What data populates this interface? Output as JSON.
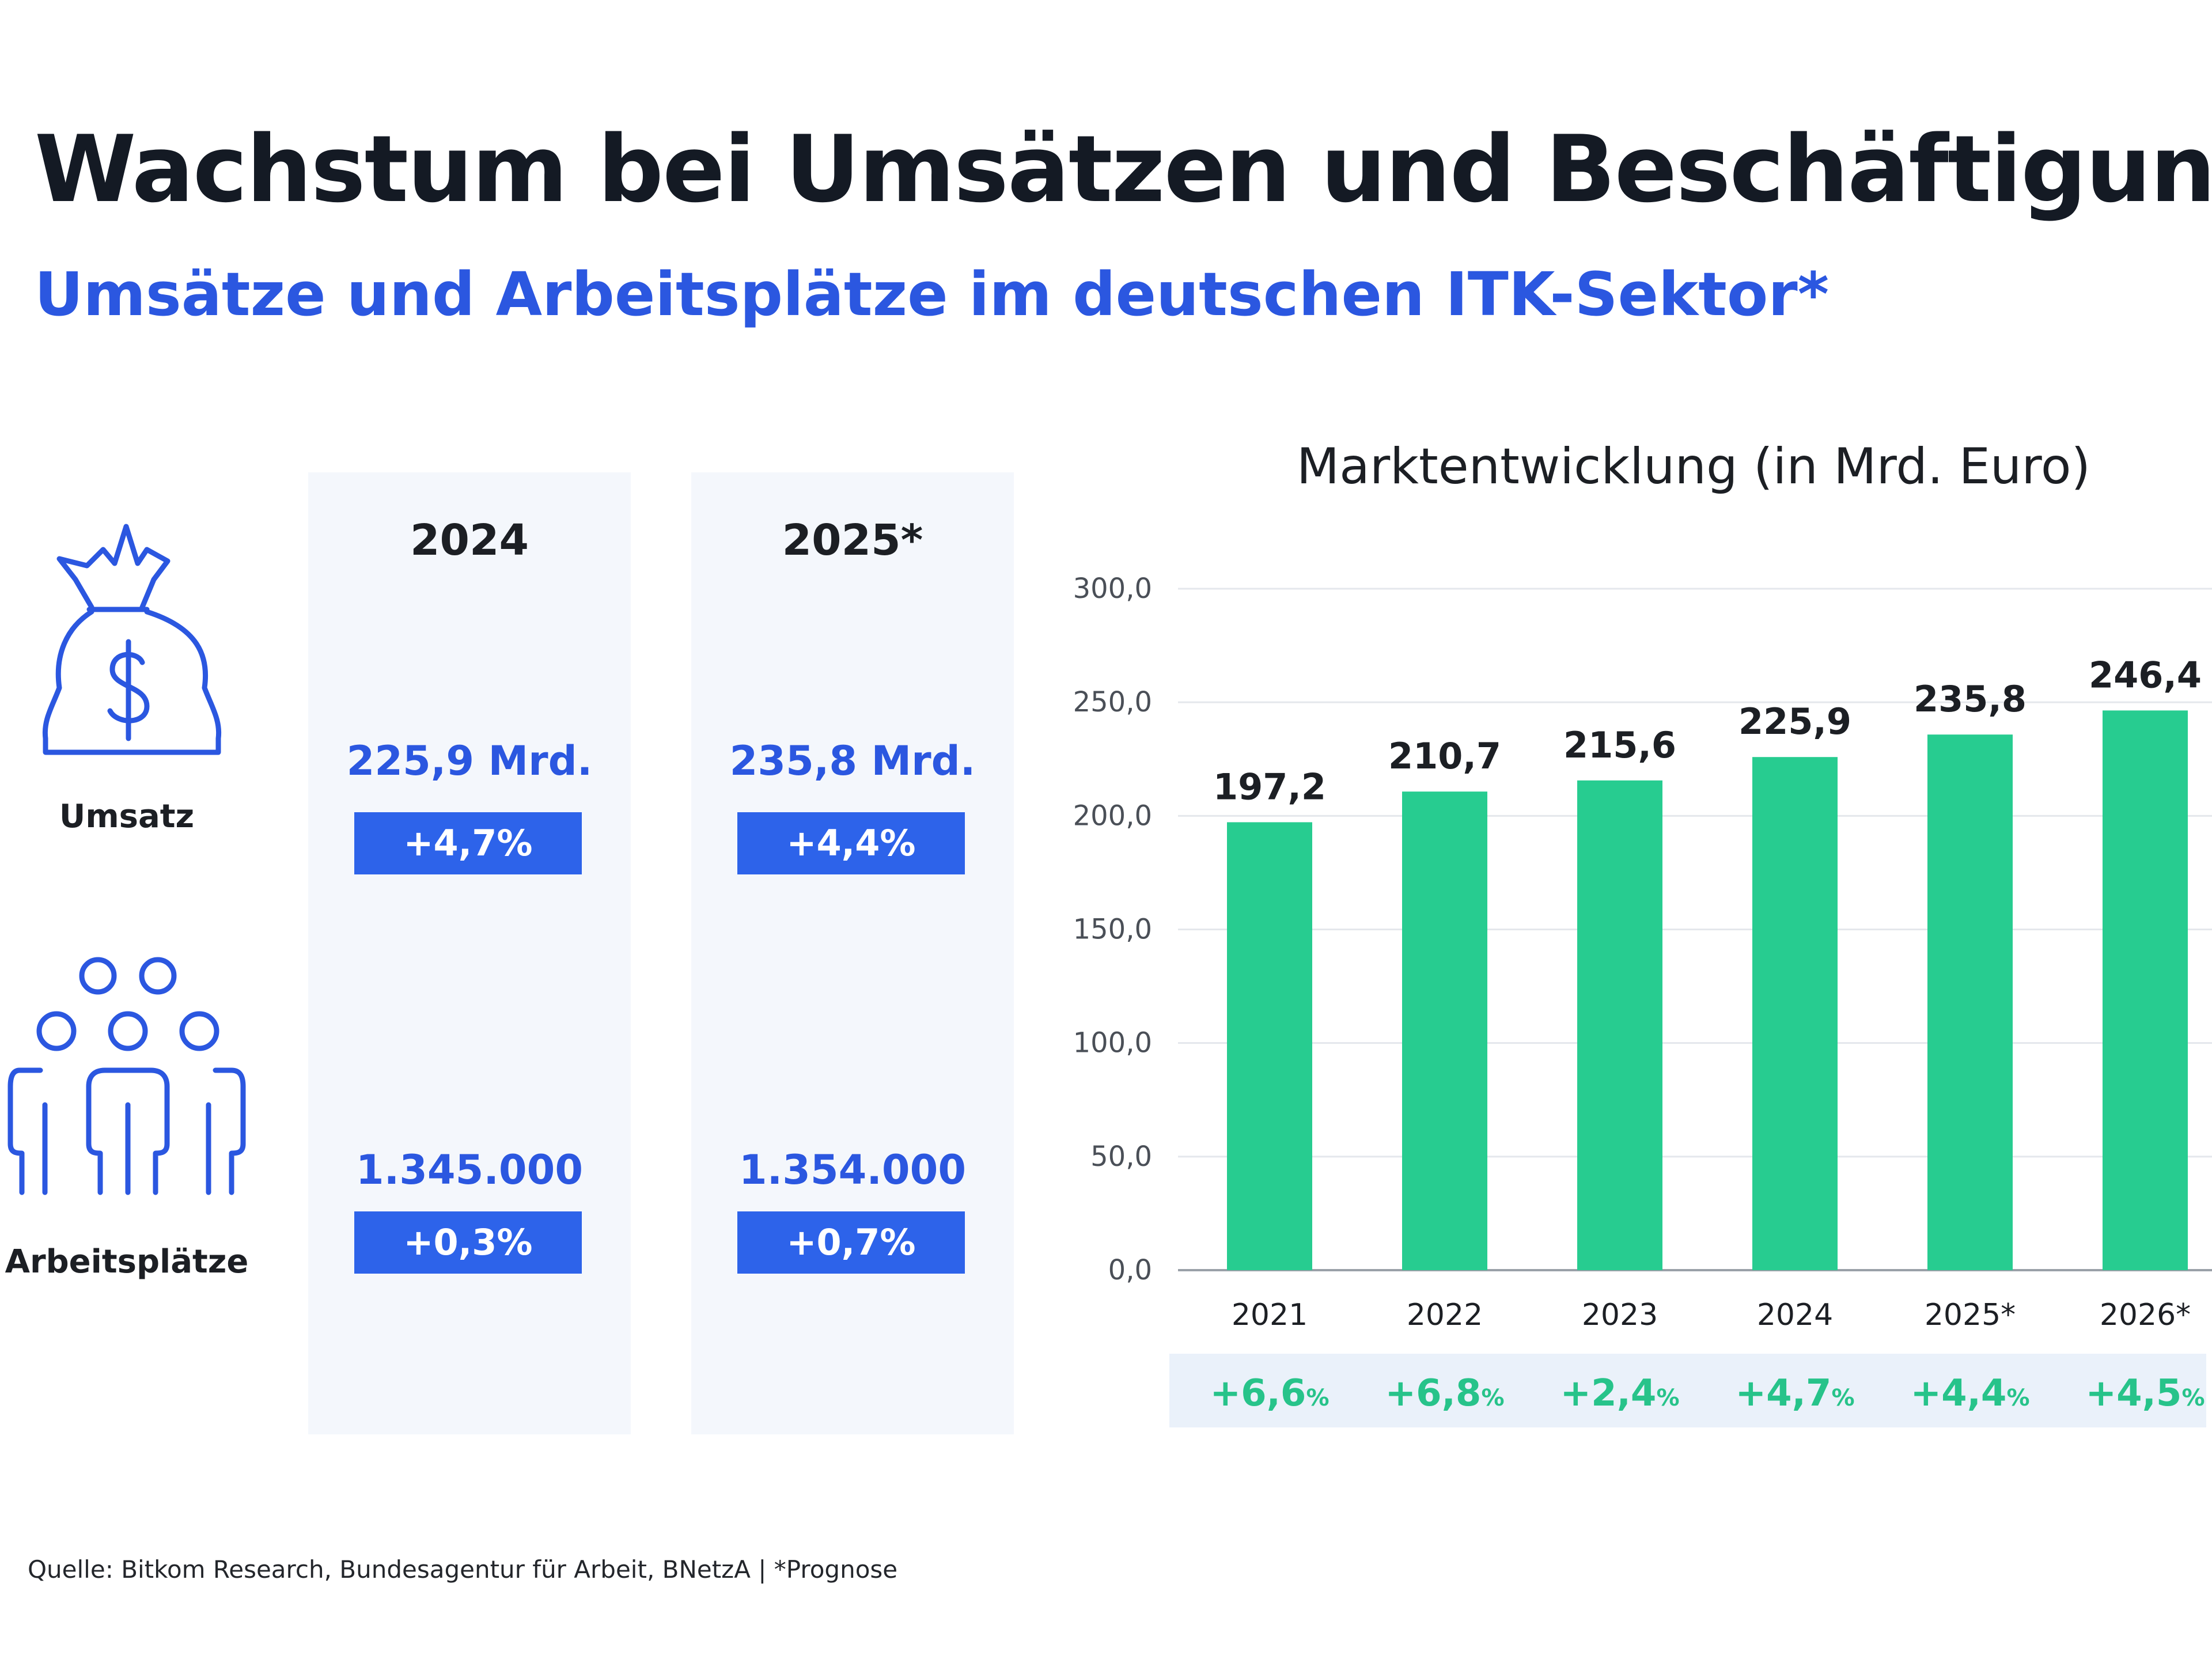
{
  "header": {
    "title": "Wachstum bei Umsätzen und Beschäftigung",
    "subtitle": "Umsätze und Arbeitsplätze im deutschen ITK-Sektor*"
  },
  "rows": {
    "revenue_label": "Umsatz",
    "jobs_label": "Arbeitsplätze"
  },
  "columns": [
    {
      "year": "2024",
      "revenue": "225,9 Mrd.",
      "revenue_change": "+4,7%",
      "jobs": "1.345.000",
      "jobs_change": "+0,3%"
    },
    {
      "year": "2025*",
      "revenue": "235,8 Mrd.",
      "revenue_change": "+4,4%",
      "jobs": "1.354.000",
      "jobs_change": "+0,7%"
    }
  ],
  "colors": {
    "bar": "#27cc90",
    "accent_blue": "#2b57e0",
    "badge_blue": "#2d63ea",
    "growth_green": "#27c38a",
    "panel_bg": "#f4f7fc"
  },
  "chart_data": {
    "type": "bar",
    "title": "Marktentwicklung (in Mrd. Euro)",
    "categories": [
      "2021",
      "2022",
      "2023",
      "2024",
      "2025*",
      "2026*"
    ],
    "values": [
      197.2,
      210.7,
      215.6,
      225.9,
      235.8,
      246.4
    ],
    "value_labels": [
      "197,2",
      "210,7",
      "215,6",
      "225,9",
      "235,8",
      "246,4"
    ],
    "growth": [
      "+6,6",
      "+6,8",
      "+2,4",
      "+4,7",
      "+4,4",
      "+4,5"
    ],
    "growth_unit": "%",
    "ylim": [
      0,
      300
    ],
    "yticks": [
      "0,0",
      "50,0",
      "100,0",
      "150,0",
      "200,0",
      "250,0",
      "300,0"
    ],
    "grid": true,
    "xlabel": "",
    "ylabel": ""
  },
  "footer": {
    "source": "Quelle: Bitkom Research, Bundesagentur für Arbeit, BNetzA | *Prognose"
  }
}
